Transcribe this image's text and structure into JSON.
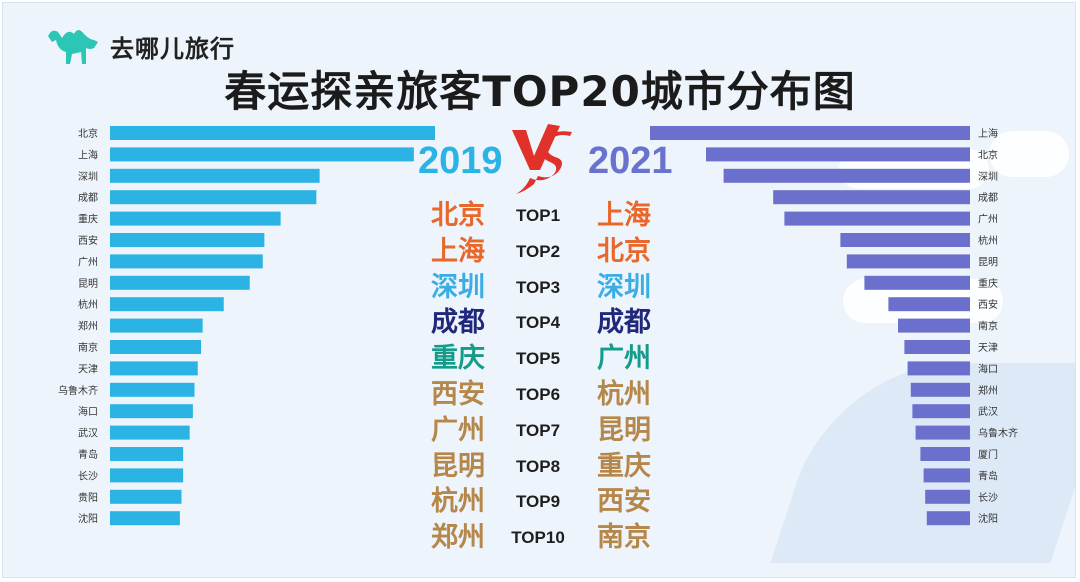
{
  "brand": {
    "logo_text": "去哪儿旅行"
  },
  "title": "春运探亲旅客TOP20城市分布图",
  "colors": {
    "left_bar": "#2bb3e3",
    "right_bar": "#6b70cd",
    "orange": "#e8672a",
    "light_blue": "#3aaee4",
    "dark_blue": "#20287c",
    "teal": "#149c8a",
    "tan": "#b5874a",
    "vs_red": "#e0312a"
  },
  "center": {
    "year_left": "2019",
    "year_right": "2021",
    "vs": "VS",
    "rankings": [
      {
        "rank": "TOP1",
        "left": "北京",
        "right": "上海",
        "left_color": "orange",
        "right_color": "orange"
      },
      {
        "rank": "TOP2",
        "left": "上海",
        "right": "北京",
        "left_color": "orange",
        "right_color": "orange"
      },
      {
        "rank": "TOP3",
        "left": "深圳",
        "right": "深圳",
        "left_color": "light_blue",
        "right_color": "light_blue"
      },
      {
        "rank": "TOP4",
        "left": "成都",
        "right": "成都",
        "left_color": "dark_blue",
        "right_color": "dark_blue"
      },
      {
        "rank": "TOP5",
        "left": "重庆",
        "right": "广州",
        "left_color": "teal",
        "right_color": "teal"
      },
      {
        "rank": "TOP6",
        "left": "西安",
        "right": "杭州",
        "left_color": "tan",
        "right_color": "tan"
      },
      {
        "rank": "TOP7",
        "left": "广州",
        "right": "昆明",
        "left_color": "tan",
        "right_color": "tan"
      },
      {
        "rank": "TOP8",
        "left": "昆明",
        "right": "重庆",
        "left_color": "tan",
        "right_color": "tan"
      },
      {
        "rank": "TOP9",
        "left": "杭州",
        "right": "西安",
        "left_color": "tan",
        "right_color": "tan"
      },
      {
        "rank": "TOP10",
        "left": "郑州",
        "right": "南京",
        "left_color": "tan",
        "right_color": "tan"
      }
    ]
  },
  "chart_data": [
    {
      "type": "bar",
      "orientation": "horizontal",
      "title": "2019",
      "categories": [
        "北京",
        "上海",
        "深圳",
        "成都",
        "重庆",
        "西安",
        "广州",
        "昆明",
        "杭州",
        "郑州",
        "南京",
        "天津",
        "乌鲁木齐",
        "海口",
        "武汉",
        "青岛",
        "长沙",
        "贵阳",
        "沈阳"
      ],
      "values": [
        100,
        93.5,
        64.5,
        63.5,
        52.5,
        47.5,
        47,
        43,
        35,
        28.5,
        28,
        27,
        26,
        25.5,
        24.5,
        22.5,
        22.5,
        22,
        21.5
      ],
      "xlim": [
        0,
        100
      ],
      "grid": false
    },
    {
      "type": "bar",
      "orientation": "horizontal",
      "direction": "right-to-left",
      "title": "2021",
      "categories": [
        "上海",
        "北京",
        "深圳",
        "成都",
        "广州",
        "杭州",
        "昆明",
        "重庆",
        "西安",
        "南京",
        "天津",
        "海口",
        "郑州",
        "武汉",
        "乌鲁木齐",
        "厦门",
        "青岛",
        "长沙",
        "沈阳"
      ],
      "values": [
        100,
        82.5,
        77,
        61.5,
        58,
        40.5,
        38.5,
        33,
        25.5,
        22.5,
        20.5,
        19.5,
        18.5,
        18,
        17,
        15.5,
        14.5,
        14,
        13.5
      ],
      "xlim": [
        0,
        100
      ],
      "grid": false
    }
  ]
}
